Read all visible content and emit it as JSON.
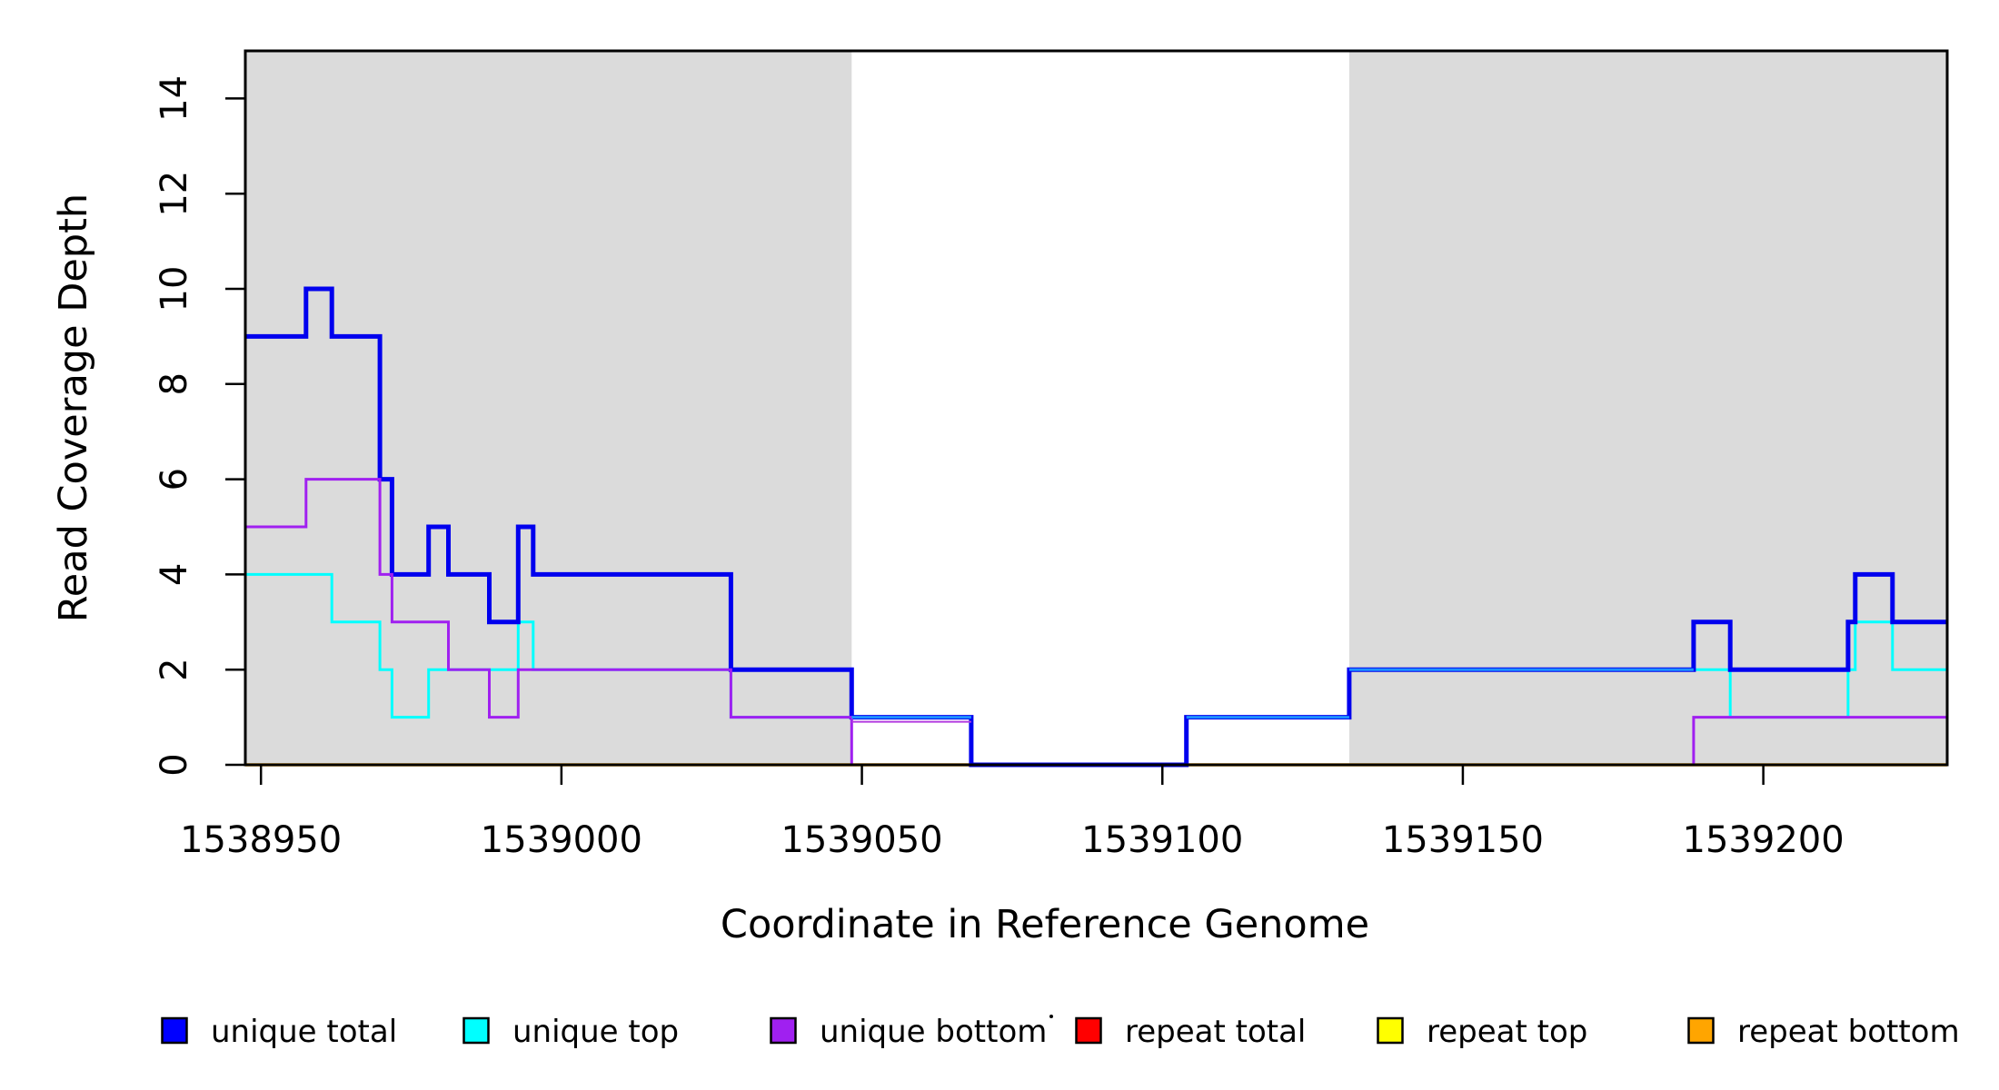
{
  "chart_data": {
    "type": "line",
    "subtype": "step-coverage-plot",
    "xlabel": "Coordinate in Reference Genome",
    "ylabel": "Read Coverage Depth",
    "xlim": [
      1538947.4,
      1539230.6
    ],
    "ylim": [
      0,
      15
    ],
    "xticks": [
      1538950,
      1539000,
      1539050,
      1539100,
      1539150,
      1539200
    ],
    "xtick_labels": [
      "1538950",
      "1539000",
      "1539050",
      "1539100",
      "1539150",
      "1539200"
    ],
    "yticks": [
      0,
      2,
      4,
      6,
      8,
      10,
      12,
      14
    ],
    "ytick_labels": [
      "0",
      "2",
      "4",
      "6",
      "8",
      "10",
      "12",
      "14"
    ],
    "grid": false,
    "plot_background": "#ffffff",
    "shaded_region_color": "#DBDBDB",
    "box_color": "#000000",
    "shaded_regions": [
      {
        "x0": 1538947.4,
        "x1": 1539048.3
      },
      {
        "x0": 1539131.1,
        "x1": 1539230.6
      }
    ],
    "series": [
      {
        "name": "repeat total",
        "color": "#FF0000",
        "width": 3,
        "steps": [
          [
            1538947.4,
            0
          ]
        ]
      },
      {
        "name": "repeat top",
        "color": "#FFFF00",
        "width": 3,
        "steps": [
          [
            1538947.4,
            0
          ]
        ]
      },
      {
        "name": "repeat bottom",
        "color": "#FFA500",
        "width": 3.5,
        "steps": [
          [
            1538947.4,
            0
          ]
        ]
      },
      {
        "name": "unique top",
        "color": "#00FFFF",
        "width": 3,
        "steps": [
          [
            1538947.4,
            4
          ],
          [
            1538961.8,
            3
          ],
          [
            1538969.8,
            2
          ],
          [
            1538971.8,
            1
          ],
          [
            1538977.9,
            2
          ],
          [
            1538992.8,
            3
          ],
          [
            1538995.3,
            2
          ],
          [
            1539028.2,
            1
          ],
          [
            1539068.2,
            0
          ],
          [
            1539104,
            1
          ],
          [
            1539131.1,
            2
          ],
          [
            1539194.5,
            1
          ],
          [
            1539214.1,
            2
          ],
          [
            1539215.3,
            3
          ],
          [
            1539221.5,
            2
          ]
        ]
      },
      {
        "name": "unique total",
        "color": "#0000EE",
        "width": 5,
        "steps": [
          [
            1538947.4,
            9
          ],
          [
            1538957.5,
            10
          ],
          [
            1538961.8,
            9
          ],
          [
            1538969.8,
            6
          ],
          [
            1538971.8,
            4
          ],
          [
            1538977.9,
            5
          ],
          [
            1538981.2,
            4
          ],
          [
            1538988,
            3
          ],
          [
            1538992.8,
            5
          ],
          [
            1538995.3,
            4
          ],
          [
            1539028.2,
            2
          ],
          [
            1539048.3,
            1
          ],
          [
            1539068.2,
            0
          ],
          [
            1539104,
            1
          ],
          [
            1539131.1,
            2
          ],
          [
            1539188.4,
            3
          ],
          [
            1539194.5,
            2
          ],
          [
            1539214.1,
            3
          ],
          [
            1539215.3,
            4
          ],
          [
            1539221.5,
            3
          ]
        ]
      },
      {
        "name": "unique bottom",
        "color": "#A020F0",
        "width": 3,
        "steps": [
          [
            1538947.4,
            5
          ],
          [
            1538957.5,
            6
          ],
          [
            1538969.8,
            4
          ],
          [
            1538971.8,
            3
          ],
          [
            1538981.2,
            2
          ],
          [
            1538988,
            1
          ],
          [
            1538992.8,
            2
          ],
          [
            1539028.2,
            1
          ],
          [
            1539048.3,
            0
          ],
          [
            1539188.4,
            1
          ]
        ]
      }
    ],
    "overlay_segments": [
      {
        "x0": 1539048.3,
        "x1": 1539068.2,
        "v": 0,
        "color": "#C93C9C",
        "width": 3,
        "dy": 0
      },
      {
        "x0": 1539104,
        "x1": 1539188.4,
        "v": 0,
        "color": "#CC3F94",
        "width": 3,
        "dy": 0
      },
      {
        "x0": 1539048.3,
        "x1": 1539068.2,
        "v": 1,
        "color": "#B23BE0",
        "width": 2,
        "dy": 5
      },
      {
        "x0": 1539048.3,
        "x1": 1539068.2,
        "v": 1,
        "color": "#1E90FF",
        "width": 3,
        "dy": 0
      },
      {
        "x0": 1539104,
        "x1": 1539131.1,
        "v": 1,
        "color": "#1E90FF",
        "width": 3,
        "dy": 0
      },
      {
        "x0": 1539131.1,
        "x1": 1539188.4,
        "v": 2,
        "color": "#1E90FF",
        "width": 3,
        "dy": 0
      }
    ]
  },
  "legend": {
    "items": [
      {
        "label": "unique total",
        "color": "#0000FF"
      },
      {
        "label": "unique top",
        "color": "#00FFFF"
      },
      {
        "label": "unique bottom",
        "color": "#A020F0"
      },
      {
        "label": "repeat total",
        "color": "#FF0000"
      },
      {
        "label": "repeat top",
        "color": "#FFFF00"
      },
      {
        "label": "repeat bottom",
        "color": "#FFA500"
      }
    ]
  }
}
